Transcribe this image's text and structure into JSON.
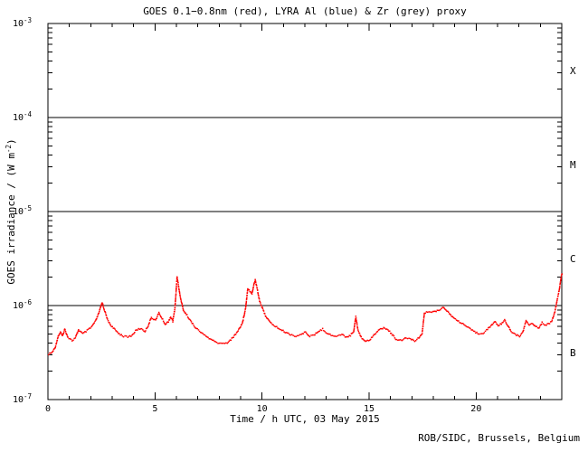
{
  "title": "GOES 0.1−0.8nm (red), LYRA Al (blue) & Zr (grey) proxy",
  "credit": "ROB/SIDC, Brussels, Belgium",
  "colors": {
    "background": "#ffffff",
    "axis": "#000000",
    "goes_red": "#ff0000",
    "lyra_al_blue": "#0000ff",
    "lyra_zr_grey": "#9a9a9a"
  },
  "chart_data": {
    "type": "scatter",
    "title": "GOES 0.1−0.8nm (red), LYRA Al (blue) & Zr (grey) proxy",
    "xlabel": "Time / h UTC, 03 May 2015",
    "ylabel_base": "GOES irradiance / (W m",
    "ylabel_exp": "-2",
    "ylabel_close": ")",
    "xlim": [
      0,
      24
    ],
    "ylim": [
      1e-07,
      0.001
    ],
    "y_scale": "log",
    "grid": false,
    "legend_position": "in-title",
    "x_major_ticks": [
      0,
      5,
      10,
      15,
      20
    ],
    "x_minor_step": 1,
    "y_exponents": [
      -3,
      -4,
      -5,
      -6,
      -7
    ],
    "reference_lines": [
      0.0001,
      1e-05,
      1e-06
    ],
    "flare_classes": [
      {
        "label": "X",
        "log_center": -3.5
      },
      {
        "label": "M",
        "log_center": -4.5
      },
      {
        "label": "C",
        "log_center": -5.5
      },
      {
        "label": "B",
        "log_center": -6.5
      }
    ],
    "series": [
      {
        "name": "GOES 0.1-0.8nm",
        "color": "#ff0000",
        "style": "dots",
        "points": [
          [
            0.0,
            3.1e-07
          ],
          [
            0.15,
            3.2e-07
          ],
          [
            0.3,
            3.6e-07
          ],
          [
            0.45,
            4.8e-07
          ],
          [
            0.55,
            5.3e-07
          ],
          [
            0.65,
            4.8e-07
          ],
          [
            0.75,
            5.7e-07
          ],
          [
            0.9,
            4.7e-07
          ],
          [
            1.1,
            4.3e-07
          ],
          [
            1.25,
            4.6e-07
          ],
          [
            1.4,
            5.6e-07
          ],
          [
            1.6,
            5.1e-07
          ],
          [
            1.8,
            5.5e-07
          ],
          [
            2.0,
            6e-07
          ],
          [
            2.2,
            7e-07
          ],
          [
            2.35,
            8.5e-07
          ],
          [
            2.5,
            1.1e-06
          ],
          [
            2.6,
            9.2e-07
          ],
          [
            2.75,
            7.2e-07
          ],
          [
            2.9,
            6.3e-07
          ],
          [
            3.1,
            5.6e-07
          ],
          [
            3.3,
            5.1e-07
          ],
          [
            3.5,
            4.8e-07
          ],
          [
            3.7,
            4.7e-07
          ],
          [
            3.9,
            4.9e-07
          ],
          [
            4.1,
            5.6e-07
          ],
          [
            4.3,
            5.8e-07
          ],
          [
            4.5,
            5.4e-07
          ],
          [
            4.65,
            6.2e-07
          ],
          [
            4.8,
            7.6e-07
          ],
          [
            5.0,
            7.1e-07
          ],
          [
            5.15,
            8.5e-07
          ],
          [
            5.3,
            7.4e-07
          ],
          [
            5.45,
            6.4e-07
          ],
          [
            5.6,
            6.9e-07
          ],
          [
            5.7,
            7.7e-07
          ],
          [
            5.8,
            6.9e-07
          ],
          [
            5.9,
            9.5e-07
          ],
          [
            6.0,
            2.05e-06
          ],
          [
            6.05,
            1.75e-06
          ],
          [
            6.15,
            1.25e-06
          ],
          [
            6.3,
            9e-07
          ],
          [
            6.5,
            7.8e-07
          ],
          [
            6.7,
            6.6e-07
          ],
          [
            6.9,
            5.8e-07
          ],
          [
            7.1,
            5.3e-07
          ],
          [
            7.35,
            4.8e-07
          ],
          [
            7.6,
            4.4e-07
          ],
          [
            7.85,
            4.1e-07
          ],
          [
            8.1,
            4e-07
          ],
          [
            8.35,
            4.1e-07
          ],
          [
            8.6,
            4.6e-07
          ],
          [
            8.85,
            5.5e-07
          ],
          [
            9.05,
            6.6e-07
          ],
          [
            9.2,
            9.5e-07
          ],
          [
            9.3,
            1.55e-06
          ],
          [
            9.4,
            1.45e-06
          ],
          [
            9.5,
            1.35e-06
          ],
          [
            9.6,
            1.75e-06
          ],
          [
            9.65,
            1.9e-06
          ],
          [
            9.75,
            1.5e-06
          ],
          [
            9.85,
            1.15e-06
          ],
          [
            10.0,
            9.3e-07
          ],
          [
            10.15,
            7.8e-07
          ],
          [
            10.35,
            6.7e-07
          ],
          [
            10.55,
            6.2e-07
          ],
          [
            10.8,
            5.7e-07
          ],
          [
            11.05,
            5.3e-07
          ],
          [
            11.3,
            5e-07
          ],
          [
            11.55,
            4.8e-07
          ],
          [
            11.8,
            5e-07
          ],
          [
            12.0,
            5.3e-07
          ],
          [
            12.2,
            4.8e-07
          ],
          [
            12.4,
            4.9e-07
          ],
          [
            12.6,
            5.4e-07
          ],
          [
            12.8,
            5.7e-07
          ],
          [
            13.0,
            5.2e-07
          ],
          [
            13.2,
            4.9e-07
          ],
          [
            13.45,
            4.8e-07
          ],
          [
            13.7,
            5e-07
          ],
          [
            13.9,
            4.7e-07
          ],
          [
            14.1,
            4.9e-07
          ],
          [
            14.25,
            5.4e-07
          ],
          [
            14.35,
            7.7e-07
          ],
          [
            14.45,
            5.6e-07
          ],
          [
            14.6,
            4.7e-07
          ],
          [
            14.8,
            4.2e-07
          ],
          [
            15.0,
            4.4e-07
          ],
          [
            15.2,
            5e-07
          ],
          [
            15.45,
            5.6e-07
          ],
          [
            15.65,
            5.9e-07
          ],
          [
            15.85,
            5.6e-07
          ],
          [
            16.05,
            5e-07
          ],
          [
            16.25,
            4.4e-07
          ],
          [
            16.5,
            4.3e-07
          ],
          [
            16.7,
            4.6e-07
          ],
          [
            16.9,
            4.5e-07
          ],
          [
            17.1,
            4.3e-07
          ],
          [
            17.3,
            4.6e-07
          ],
          [
            17.45,
            5.2e-07
          ],
          [
            17.55,
            8.4e-07
          ],
          [
            17.7,
            8.7e-07
          ],
          [
            17.9,
            8.6e-07
          ],
          [
            18.1,
            8.9e-07
          ],
          [
            18.3,
            9.3e-07
          ],
          [
            18.45,
            9.8e-07
          ],
          [
            18.6,
            9e-07
          ],
          [
            18.75,
            8.2e-07
          ],
          [
            18.95,
            7.4e-07
          ],
          [
            19.15,
            6.9e-07
          ],
          [
            19.35,
            6.5e-07
          ],
          [
            19.6,
            5.9e-07
          ],
          [
            19.85,
            5.4e-07
          ],
          [
            20.1,
            5.1e-07
          ],
          [
            20.3,
            5.2e-07
          ],
          [
            20.5,
            5.7e-07
          ],
          [
            20.7,
            6.3e-07
          ],
          [
            20.85,
            6.9e-07
          ],
          [
            21.0,
            6.2e-07
          ],
          [
            21.15,
            6.5e-07
          ],
          [
            21.3,
            7.2e-07
          ],
          [
            21.45,
            6.2e-07
          ],
          [
            21.6,
            5.4e-07
          ],
          [
            21.8,
            5e-07
          ],
          [
            22.0,
            4.8e-07
          ],
          [
            22.15,
            5.3e-07
          ],
          [
            22.3,
            7e-07
          ],
          [
            22.45,
            6.3e-07
          ],
          [
            22.6,
            6.6e-07
          ],
          [
            22.75,
            6.1e-07
          ],
          [
            22.9,
            5.9e-07
          ],
          [
            23.05,
            6.7e-07
          ],
          [
            23.2,
            6.3e-07
          ],
          [
            23.35,
            6.5e-07
          ],
          [
            23.5,
            6.9e-07
          ],
          [
            23.65,
            8.8e-07
          ],
          [
            23.75,
            1.15e-06
          ],
          [
            23.85,
            1.5e-06
          ],
          [
            23.95,
            2.1e-06
          ],
          [
            24.0,
            2.3e-06
          ]
        ]
      },
      {
        "name": "LYRA Al proxy",
        "color": "#0000ff",
        "style": "dots",
        "points": []
      },
      {
        "name": "LYRA Zr proxy",
        "color": "#9a9a9a",
        "style": "dots",
        "points": []
      }
    ]
  }
}
